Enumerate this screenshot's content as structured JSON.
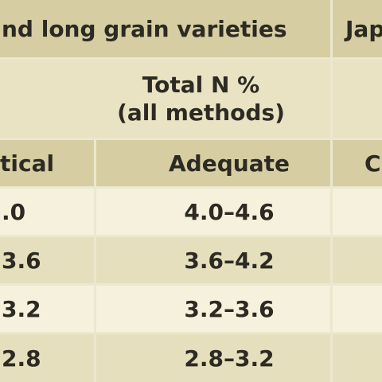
{
  "header": {
    "group_left": "nd long grain varieties",
    "group_right": "Jap",
    "sub_line1": "Total N %",
    "sub_line2": "(all methods)",
    "col_critical": "tical",
    "col_adequate": "Adequate",
    "col_right": "C"
  },
  "rows": [
    {
      "critical": ".0",
      "adequate": "4.0–4.6"
    },
    {
      "critical": "3.6",
      "adequate": "3.6–4.2"
    },
    {
      "critical": "3.2",
      "adequate": "3.2–3.6"
    },
    {
      "critical": "2.8",
      "adequate": "2.8–3.2"
    }
  ]
}
